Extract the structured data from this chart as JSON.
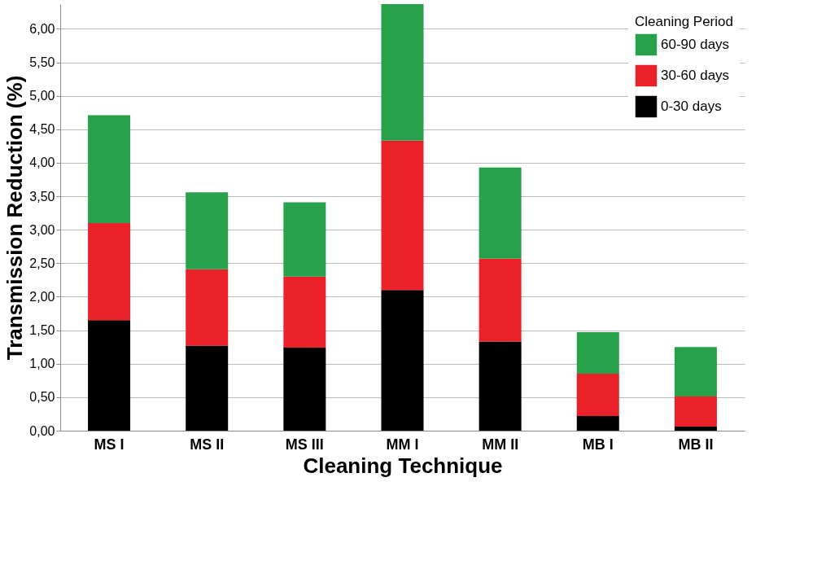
{
  "chart_data": {
    "type": "bar",
    "stacked": true,
    "xlabel": "Cleaning Technique",
    "ylabel": "Transmission Reduction (%)",
    "legend_title": "Cleaning Period",
    "legend": "top right",
    "grid": "y",
    "categories": [
      "MS I",
      "MS II",
      "MS III",
      "MM I",
      "MM II",
      "MB I",
      "MB II"
    ],
    "series": [
      {
        "name": "0-30 days",
        "color": "#000000",
        "values": [
          1.65,
          1.27,
          1.24,
          2.1,
          1.33,
          0.22,
          0.06
        ]
      },
      {
        "name": "30-60 days",
        "color": "#ea2128",
        "values": [
          1.45,
          1.14,
          1.06,
          2.23,
          1.24,
          0.63,
          0.45
        ]
      },
      {
        "name": "60-90 days",
        "color": "#27a14b",
        "values": [
          1.61,
          1.15,
          1.11,
          2.04,
          1.36,
          0.62,
          0.74
        ]
      }
    ],
    "ylim": [
      0,
      6.37
    ],
    "yticks": [
      {
        "value": 0,
        "label": "0,00"
      },
      {
        "value": 0.5,
        "label": "0,50"
      },
      {
        "value": 1,
        "label": "1,00"
      },
      {
        "value": 1.5,
        "label": "1,50"
      },
      {
        "value": 2,
        "label": "2,00"
      },
      {
        "value": 2.5,
        "label": "2,50"
      },
      {
        "value": 3,
        "label": "3,00"
      },
      {
        "value": 3.5,
        "label": "3,50"
      },
      {
        "value": 4,
        "label": "4,00"
      },
      {
        "value": 4.5,
        "label": "4,50"
      },
      {
        "value": 5,
        "label": "5,00"
      },
      {
        "value": 5.5,
        "label": "5,50"
      },
      {
        "value": 6,
        "label": "6,00"
      }
    ]
  }
}
